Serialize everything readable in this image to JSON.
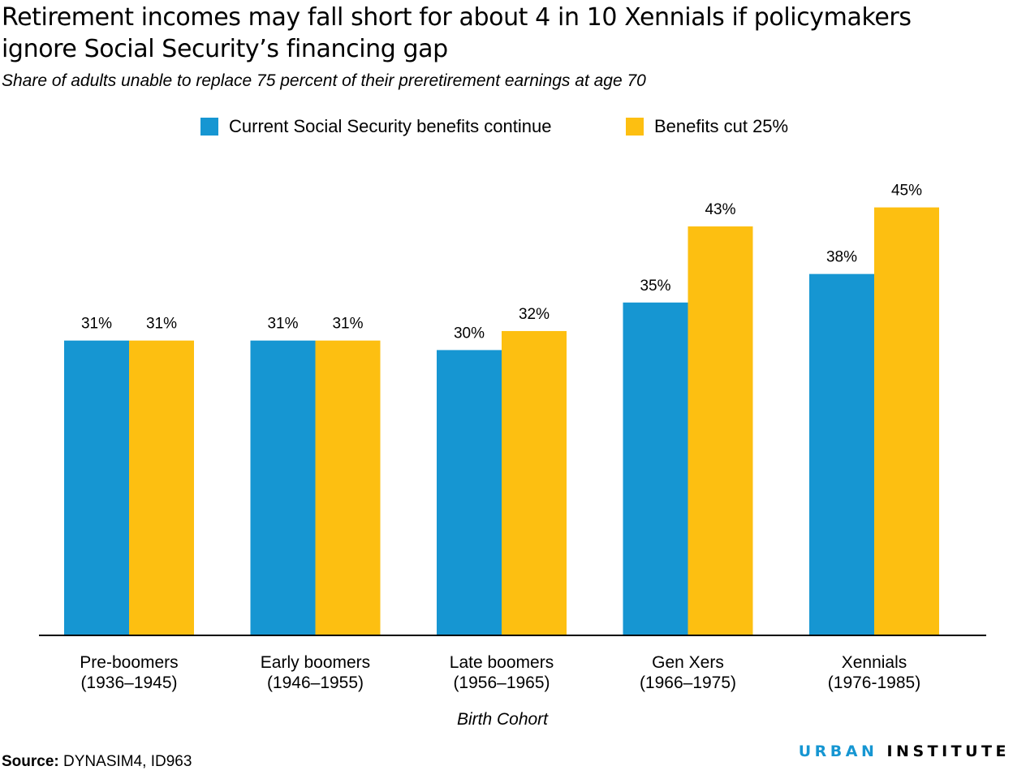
{
  "title": "Retirement incomes may fall short for about 4 in 10 Xennials if policymakers ignore Social Security’s financing gap",
  "subtitle": "Share of adults unable to replace 75 percent of their preretirement earnings at age 70",
  "source_label": "Source:",
  "source_text": "DYNASIM4, ID963",
  "logo": {
    "part1": "URBAN",
    "part2": "INSTITUTE"
  },
  "colors": {
    "current": "#1696d2",
    "cut": "#fdbf11",
    "axis": "#000000"
  },
  "chart_data": {
    "type": "bar",
    "xlabel": "Birth Cohort",
    "ylabel": "",
    "ylim": [
      0,
      50
    ],
    "grid": false,
    "legend_position": "top-center",
    "categories": [
      [
        "Pre-boomers",
        "(1936–1945)"
      ],
      [
        "Early boomers",
        "(1946–1955)"
      ],
      [
        "Late boomers",
        "(1956–1965)"
      ],
      [
        "Gen Xers",
        "(1966–1975)"
      ],
      [
        "Xennials",
        "(1976-1985)"
      ]
    ],
    "series": [
      {
        "name": "Current Social Security benefits continue",
        "color": "#1696d2",
        "values": [
          31,
          31,
          30,
          35,
          38
        ],
        "labels": [
          "31%",
          "31%",
          "30%",
          "35%",
          "38%"
        ]
      },
      {
        "name": "Benefits cut 25%",
        "color": "#fdbf11",
        "values": [
          31,
          31,
          32,
          43,
          45
        ],
        "labels": [
          "31%",
          "31%",
          "32%",
          "43%",
          "45%"
        ]
      }
    ]
  }
}
